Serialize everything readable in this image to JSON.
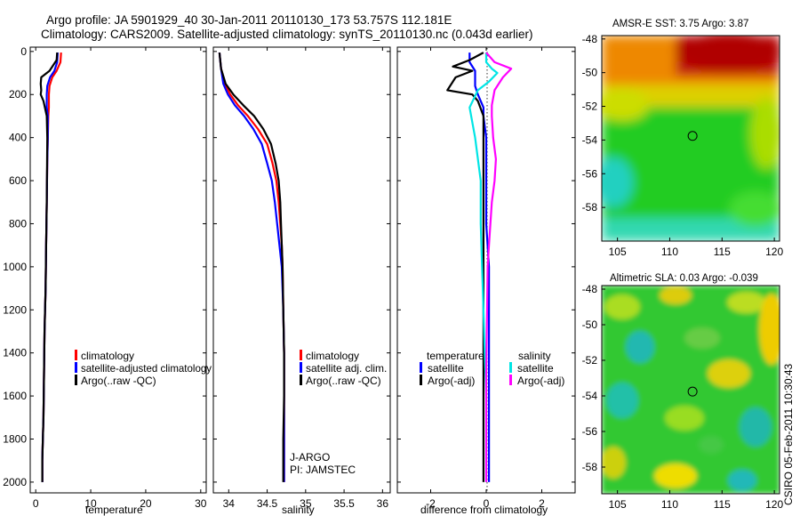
{
  "header": {
    "line1": "Argo profile: JA 5901929_40 30-Jan-2011 20110130_173 53.757S 112.181E",
    "line2": "Climatology: CARS2009. Satellite-adjusted climatology: synTS_20110130.nc (0.043d earlier)"
  },
  "footer": {
    "stamp": "CSIRO 05-Feb-2011 10:30:43"
  },
  "colors": {
    "red": "#ff0000",
    "blue": "#0000ff",
    "black": "#000000",
    "cyan": "#00e5e5",
    "magenta": "#ff00ff"
  },
  "chart_data": [
    {
      "type": "line",
      "name": "temperature-profile",
      "xlabel": "temperature",
      "ylabel": "",
      "xlim": [
        -1,
        31
      ],
      "ylim": [
        2050,
        -20
      ],
      "xticks": [
        0,
        10,
        20,
        30
      ],
      "yticks": [
        0,
        200,
        400,
        600,
        800,
        1000,
        1200,
        1400,
        1600,
        1800,
        2000
      ],
      "legend": [
        "climatology",
        "satellite-adjusted climatology",
        "Argo(..raw -QC)"
      ],
      "series": [
        {
          "name": "climatology",
          "color": "red",
          "x": [
            4.6,
            4.5,
            3.8,
            3.0,
            2.5,
            2.4,
            2.4,
            2.3,
            2.2,
            2.1,
            2.0,
            1.9,
            1.8,
            1.6,
            1.5,
            1.4,
            1.3,
            1.2,
            1.2,
            1.2
          ],
          "y": [
            5,
            50,
            90,
            120,
            160,
            200,
            260,
            300,
            400,
            500,
            700,
            900,
            1100,
            1300,
            1500,
            1700,
            1800,
            1900,
            1950,
            2000
          ]
        },
        {
          "name": "satellite-adjusted climatology",
          "color": "blue",
          "x": [
            4.0,
            3.9,
            3.4,
            2.6,
            2.1,
            2.0,
            2.0,
            2.2,
            2.2,
            2.1,
            2.0,
            1.9,
            1.8,
            1.6,
            1.5,
            1.4,
            1.3,
            1.2,
            1.2,
            1.2
          ],
          "y": [
            5,
            50,
            90,
            120,
            160,
            200,
            260,
            300,
            400,
            500,
            700,
            900,
            1100,
            1300,
            1500,
            1700,
            1800,
            1900,
            1950,
            2000
          ]
        },
        {
          "name": "Argo(..raw -QC)",
          "color": "black",
          "x": [
            3.9,
            3.8,
            2.5,
            1.0,
            0.9,
            1.0,
            0.9,
            1.4,
            2.0,
            2.1,
            2.0,
            1.9,
            1.8,
            1.6,
            1.5,
            1.4,
            1.3,
            1.2,
            1.2,
            1.2
          ],
          "y": [
            5,
            40,
            90,
            120,
            150,
            180,
            200,
            230,
            300,
            400,
            700,
            900,
            1100,
            1300,
            1500,
            1700,
            1800,
            1900,
            1950,
            2000
          ]
        }
      ]
    },
    {
      "type": "line",
      "name": "salinity-profile",
      "xlabel": "salinity",
      "ylabel": "",
      "xlim": [
        33.8,
        36.1
      ],
      "ylim": [
        2050,
        -20
      ],
      "xticks": [
        34,
        34.5,
        35,
        35.5,
        36
      ],
      "annotations": [
        "J-ARGO",
        "PI: JAMSTEC"
      ],
      "legend": [
        "climatology",
        "satellite adj. clim.",
        "Argo(..raw -QC)"
      ],
      "series": [
        {
          "name": "climatology",
          "color": "red",
          "x": [
            33.88,
            33.9,
            33.95,
            34.02,
            34.12,
            34.25,
            34.38,
            34.5,
            34.57,
            34.62,
            34.65,
            34.67,
            34.69,
            34.7,
            34.71,
            34.72,
            34.72,
            34.72,
            34.72
          ],
          "y": [
            5,
            80,
            150,
            200,
            250,
            300,
            360,
            430,
            520,
            600,
            700,
            800,
            900,
            1000,
            1200,
            1400,
            1600,
            1800,
            2000
          ]
        },
        {
          "name": "satellite adj. clim.",
          "color": "blue",
          "x": [
            33.88,
            33.9,
            33.93,
            33.99,
            34.08,
            34.2,
            34.32,
            34.43,
            34.5,
            34.56,
            34.6,
            34.63,
            34.66,
            34.69,
            34.71,
            34.72,
            34.72,
            34.72,
            34.72
          ],
          "y": [
            5,
            80,
            150,
            200,
            250,
            300,
            360,
            430,
            520,
            600,
            700,
            800,
            900,
            1000,
            1200,
            1400,
            1600,
            1800,
            2000
          ]
        },
        {
          "name": "Argo(..raw -QC)",
          "color": "black",
          "x": [
            33.88,
            33.9,
            33.96,
            34.06,
            34.19,
            34.33,
            34.45,
            34.55,
            34.61,
            34.65,
            34.67,
            34.68,
            34.69,
            34.7,
            34.71,
            34.72,
            34.72,
            34.71,
            34.71
          ],
          "y": [
            5,
            80,
            150,
            200,
            250,
            300,
            360,
            430,
            520,
            600,
            700,
            800,
            900,
            1000,
            1200,
            1400,
            1600,
            1800,
            2000
          ]
        }
      ]
    },
    {
      "type": "line",
      "name": "difference-profile",
      "xlabel": "difference from climatology",
      "ylabel": "",
      "xlim": [
        -3.2,
        3.2
      ],
      "ylim": [
        2050,
        -20
      ],
      "xticks": [
        -2,
        0,
        2
      ],
      "legend_title_left": "temperature",
      "legend_title_right": "salinity",
      "legend": [
        "satellite",
        "Argo(-adj)",
        "satellite",
        "Argo(-adj)"
      ],
      "series": [
        {
          "name": "temperature satellite",
          "color": "blue",
          "x": [
            -0.6,
            -0.6,
            -0.4,
            -0.4,
            -0.4,
            -0.3,
            -0.1,
            -0.1,
            0.0,
            0.0,
            0.0,
            0.1,
            0.1,
            0.1,
            0.1,
            0.1,
            0.1,
            0.1
          ],
          "y": [
            5,
            50,
            90,
            120,
            160,
            200,
            260,
            300,
            400,
            600,
            800,
            1000,
            1200,
            1400,
            1600,
            1800,
            1900,
            2000
          ]
        },
        {
          "name": "temperature Argo(-adj)",
          "color": "black",
          "x": [
            -0.1,
            -0.6,
            -1.2,
            -0.5,
            -1.1,
            -1.4,
            -0.5,
            -0.3,
            -0.1,
            -0.1,
            -0.1,
            -0.1,
            -0.1,
            -0.1,
            -0.1,
            -0.1,
            -0.1,
            -0.1
          ],
          "y": [
            5,
            40,
            70,
            90,
            120,
            180,
            200,
            230,
            300,
            500,
            700,
            900,
            1100,
            1300,
            1500,
            1700,
            1850,
            2000
          ]
        },
        {
          "name": "salinity satellite",
          "color": "cyan",
          "x": [
            0.0,
            0.0,
            0.2,
            0.4,
            0.1,
            -0.3,
            -0.6,
            -0.4,
            -0.2,
            -0.2,
            -0.15,
            -0.1,
            -0.05,
            0.0,
            0.0,
            0.0
          ],
          "y": [
            5,
            50,
            80,
            100,
            140,
            180,
            260,
            400,
            600,
            800,
            1000,
            1200,
            1400,
            1600,
            1800,
            2000
          ]
        },
        {
          "name": "salinity Argo(-adj)",
          "color": "magenta",
          "x": [
            0.0,
            0.3,
            0.9,
            0.6,
            0.3,
            0.2,
            0.2,
            0.25,
            0.35,
            0.3,
            0.2,
            0.15,
            0.1,
            0.05,
            0.0,
            0.0
          ],
          "y": [
            5,
            50,
            80,
            120,
            180,
            250,
            300,
            400,
            500,
            600,
            700,
            800,
            900,
            1000,
            1500,
            2000
          ]
        }
      ]
    },
    {
      "type": "heatmap",
      "name": "amsr-sst-map",
      "title": "AMSR-E SST: 3.75 Argo: 3.87",
      "xlim": [
        103.5,
        120.5
      ],
      "ylim": [
        -60,
        -47.8
      ],
      "xticks": [
        105,
        110,
        115,
        120
      ],
      "yticks": [
        -48,
        -50,
        -52,
        -54,
        -56,
        -58
      ],
      "marker": {
        "lon": 112.181,
        "lat": -53.757
      }
    },
    {
      "type": "heatmap",
      "name": "altimetric-sla-map",
      "title": "Altimetric SLA: 0.03 Argo: -0.039",
      "xlim": [
        103.5,
        120.5
      ],
      "ylim": [
        -59.5,
        -47.8
      ],
      "xticks": [
        105,
        110,
        115,
        120
      ],
      "yticks": [
        -48,
        -50,
        -52,
        -54,
        -56,
        -58
      ],
      "marker": {
        "lon": 112.181,
        "lat": -53.757
      }
    }
  ]
}
